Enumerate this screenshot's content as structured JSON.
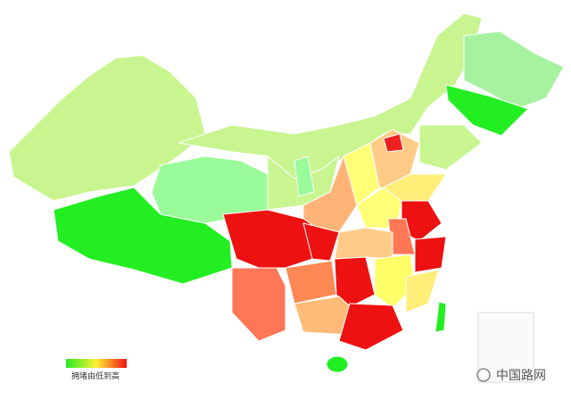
{
  "legend": {
    "label": "拥堵由低到高"
  },
  "watermark": "中国路网"
}
